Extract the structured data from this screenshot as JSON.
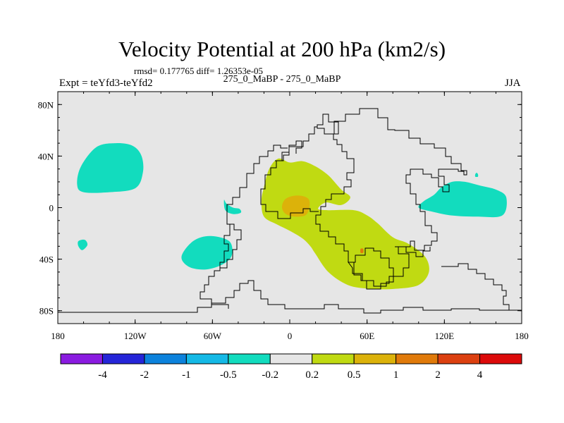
{
  "title": "Velocity Potential at 200 hPa (km2/s)",
  "stats": "rmsd= 0.177765 diff= 1.26353e-05",
  "expt_label": "Expt = teYfd3-teYfd2",
  "subtitle": "275_0_MaBP - 275_0_MaBP",
  "season": "JJA",
  "colors": {
    "background": "#e6e6e6",
    "coast": "#000000",
    "bins": [
      "#8a1be0",
      "#2525d8",
      "#0c82dc",
      "#15b9e6",
      "#12dcbe",
      "#e6e6e6",
      "#c0da12",
      "#dcb20a",
      "#e07a0a",
      "#dc4010",
      "#dc0a0a"
    ]
  },
  "chart_data": {
    "type": "filled-contour-map",
    "field": "velocity potential difference at 200 hPa",
    "units": "km2/s",
    "xlim": [
      -180,
      180
    ],
    "ylim": [
      -90,
      90
    ],
    "x_ticks": [
      {
        "value": -180,
        "label": "180"
      },
      {
        "value": -120,
        "label": "120W"
      },
      {
        "value": -60,
        "label": "60W"
      },
      {
        "value": 0,
        "label": "0"
      },
      {
        "value": 60,
        "label": "60E"
      },
      {
        "value": 120,
        "label": "120E"
      },
      {
        "value": 180,
        "label": "180"
      }
    ],
    "y_ticks": [
      {
        "value": 80,
        "label": "80N"
      },
      {
        "value": 40,
        "label": "40N"
      },
      {
        "value": 0,
        "label": "0"
      },
      {
        "value": -40,
        "label": "40S"
      },
      {
        "value": -80,
        "label": "80S"
      }
    ],
    "colorbar_levels": [
      "-4",
      "-2",
      "-1",
      "-0.5",
      "-0.2",
      "0.2",
      "0.5",
      "1",
      "2",
      "4"
    ],
    "regions": [
      {
        "name": "neg-north-pacific",
        "bin": 4,
        "lonlat": [
          [
            -165,
            18
          ],
          [
            -162,
            32
          ],
          [
            -150,
            47
          ],
          [
            -135,
            50
          ],
          [
            -122,
            48
          ],
          [
            -115,
            40
          ],
          [
            -114,
            27
          ],
          [
            -120,
            15
          ],
          [
            -140,
            12
          ],
          [
            -160,
            12
          ]
        ]
      },
      {
        "name": "neg-south-pacific-dot",
        "bin": 4,
        "lonlat": [
          [
            -164,
            -26
          ],
          [
            -159,
            -25
          ],
          [
            -157,
            -29
          ],
          [
            -161,
            -33
          ],
          [
            -164,
            -30
          ]
        ]
      },
      {
        "name": "neg-south-america",
        "bin": 4,
        "lonlat": [
          [
            -84,
            -38
          ],
          [
            -75,
            -26
          ],
          [
            -62,
            -22
          ],
          [
            -47,
            -26
          ],
          [
            -45,
            -37
          ],
          [
            -52,
            -44
          ],
          [
            -65,
            -48
          ],
          [
            -78,
            -46
          ]
        ]
      },
      {
        "name": "neg-brazil",
        "bin": 4,
        "lonlat": [
          [
            -51,
            6
          ],
          [
            -49,
            3
          ],
          [
            -44,
            0
          ],
          [
            -39,
            -1
          ],
          [
            -38,
            -4
          ],
          [
            -44,
            -5
          ],
          [
            -50,
            -2
          ]
        ]
      },
      {
        "name": "neg-west-pacific",
        "bin": 4,
        "lonlat": [
          [
            100,
            0
          ],
          [
            104,
            5
          ],
          [
            112,
            10
          ],
          [
            118,
            16
          ],
          [
            126,
            20
          ],
          [
            136,
            20
          ],
          [
            148,
            17
          ],
          [
            160,
            14
          ],
          [
            168,
            8
          ],
          [
            165,
            -6
          ],
          [
            145,
            -7
          ],
          [
            125,
            -6
          ],
          [
            110,
            -3
          ]
        ]
      },
      {
        "name": "neg-west-pacific-dot",
        "bin": 4,
        "lonlat": [
          [
            145,
            27
          ],
          [
            146,
            26
          ],
          [
            146,
            24
          ],
          [
            144,
            24
          ],
          [
            144,
            26
          ]
        ]
      },
      {
        "name": "pos-africa-indian",
        "bin": 6,
        "lonlat": [
          [
            -20,
            16
          ],
          [
            -16,
            30
          ],
          [
            -9,
            38
          ],
          [
            0,
            35
          ],
          [
            10,
            36
          ],
          [
            20,
            32
          ],
          [
            30,
            25
          ],
          [
            40,
            14
          ],
          [
            47,
            8
          ],
          [
            40,
            2
          ],
          [
            28,
            4
          ],
          [
            22,
            -1
          ],
          [
            30,
            -2
          ],
          [
            50,
            -2
          ],
          [
            60,
            -6
          ],
          [
            68,
            -12
          ],
          [
            80,
            -23
          ],
          [
            92,
            -28
          ],
          [
            105,
            -38
          ],
          [
            108,
            -50
          ],
          [
            100,
            -60
          ],
          [
            82,
            -63
          ],
          [
            62,
            -63
          ],
          [
            45,
            -60
          ],
          [
            30,
            -50
          ],
          [
            20,
            -36
          ],
          [
            16,
            -30
          ],
          [
            10,
            -24
          ],
          [
            0,
            -18
          ],
          [
            -10,
            -13
          ],
          [
            -20,
            -7
          ],
          [
            -22,
            5
          ]
        ]
      },
      {
        "name": "pos-core-west-africa",
        "bin": 7,
        "lonlat": [
          [
            -6,
            0
          ],
          [
            -4,
            6
          ],
          [
            2,
            9
          ],
          [
            10,
            9
          ],
          [
            15,
            6
          ],
          [
            15,
            -1
          ],
          [
            12,
            -6
          ],
          [
            4,
            -7
          ],
          [
            -3,
            -5
          ]
        ]
      },
      {
        "name": "pos-dot-southern-africa",
        "bin": 8,
        "lonlat": [
          [
            55,
            -32
          ],
          [
            57,
            -32
          ],
          [
            57,
            -35
          ],
          [
            55,
            -35
          ]
        ]
      }
    ]
  }
}
